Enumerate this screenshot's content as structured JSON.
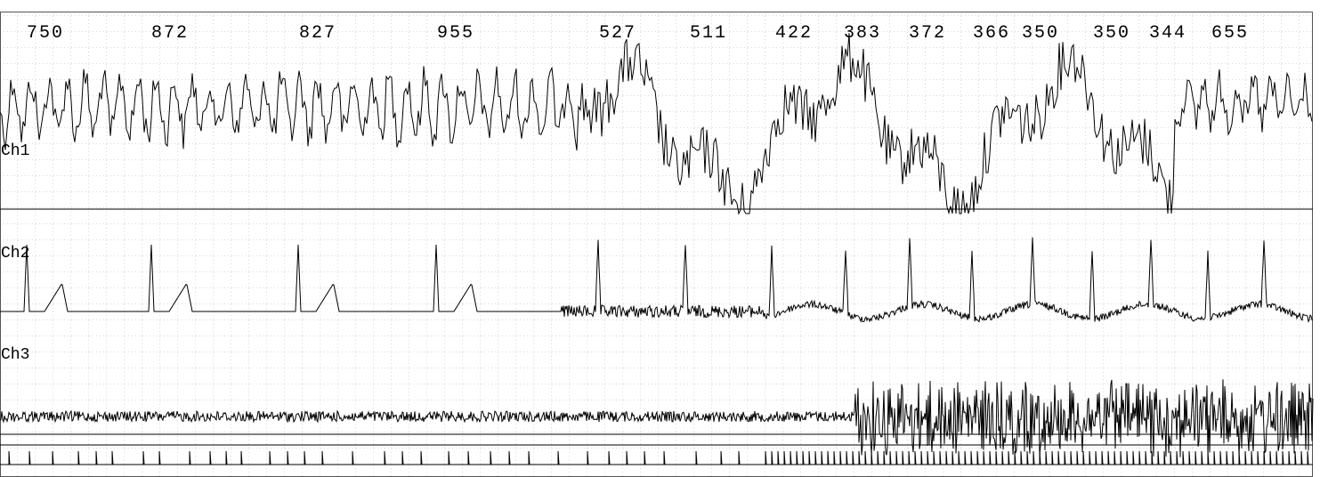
{
  "interval_labels": [
    "750",
    "872",
    "827",
    "955",
    "527",
    "511",
    "422",
    "383",
    "372",
    "366",
    "350",
    "350",
    "344",
    "655"
  ],
  "channels": [
    "Ch1",
    "Ch2",
    "Ch3"
  ]
}
